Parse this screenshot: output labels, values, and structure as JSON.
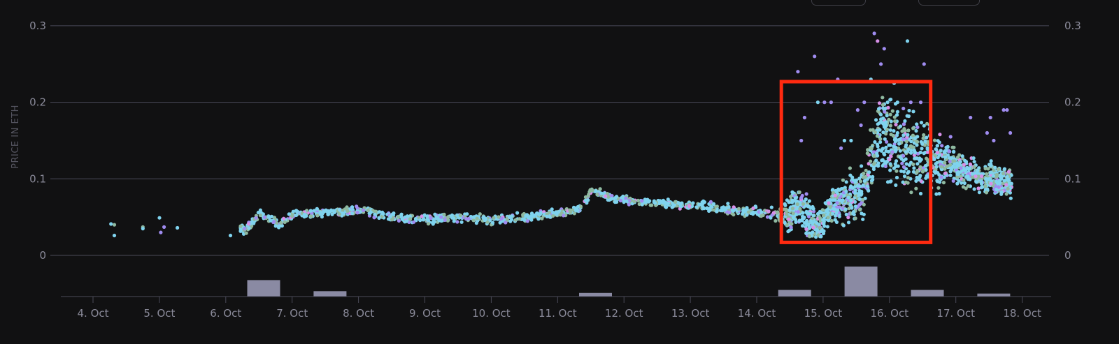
{
  "chart_data": {
    "type": "scatter",
    "ylabel": "PRICE IN ETH",
    "yticks": [
      0,
      0.1,
      0.2,
      0.3
    ],
    "ytick_labels": [
      "0",
      "0.1",
      "0.2",
      "0.3"
    ],
    "ylim": [
      0,
      0.3
    ],
    "grid": true,
    "xticks": [
      "4. Oct",
      "5. Oct",
      "6. Oct",
      "7. Oct",
      "8. Oct",
      "9. Oct",
      "10. Oct",
      "11. Oct",
      "12. Oct",
      "13. Oct",
      "14. Oct",
      "15. Oct",
      "16. Oct",
      "17. Oct",
      "18. Oct"
    ],
    "xlim": [
      3.7,
      18.4
    ],
    "price_trend": [
      [
        4.25,
        0.035
      ],
      [
        4.7,
        0.036
      ],
      [
        5.1,
        0.03
      ],
      [
        6.3,
        0.035
      ],
      [
        6.5,
        0.055
      ],
      [
        6.8,
        0.04
      ],
      [
        7.0,
        0.055
      ],
      [
        7.5,
        0.056
      ],
      [
        8.0,
        0.06
      ],
      [
        8.5,
        0.05
      ],
      [
        9.0,
        0.047
      ],
      [
        9.5,
        0.05
      ],
      [
        10.0,
        0.047
      ],
      [
        10.5,
        0.05
      ],
      [
        11.0,
        0.055
      ],
      [
        11.3,
        0.06
      ],
      [
        11.5,
        0.085
      ],
      [
        11.8,
        0.075
      ],
      [
        12.2,
        0.07
      ],
      [
        12.7,
        0.068
      ],
      [
        13.2,
        0.065
      ],
      [
        13.7,
        0.058
      ],
      [
        14.2,
        0.055
      ],
      [
        14.45,
        0.05
      ],
      [
        14.6,
        0.07
      ],
      [
        14.8,
        0.04
      ],
      [
        14.95,
        0.04
      ],
      [
        15.1,
        0.065
      ],
      [
        15.4,
        0.075
      ],
      [
        15.6,
        0.08
      ],
      [
        15.75,
        0.14
      ],
      [
        15.85,
        0.17
      ],
      [
        16.0,
        0.15
      ],
      [
        16.2,
        0.14
      ],
      [
        16.4,
        0.13
      ],
      [
        16.6,
        0.125
      ],
      [
        16.9,
        0.12
      ],
      [
        17.2,
        0.105
      ],
      [
        17.5,
        0.1
      ],
      [
        17.75,
        0.095
      ]
    ],
    "price_spread": [
      [
        4.0,
        0.006
      ],
      [
        6.3,
        0.008
      ],
      [
        11.2,
        0.008
      ],
      [
        14.3,
        0.01
      ],
      [
        14.5,
        0.04
      ],
      [
        15.0,
        0.03
      ],
      [
        15.6,
        0.05
      ],
      [
        16.0,
        0.08
      ],
      [
        16.5,
        0.06
      ],
      [
        17.0,
        0.03
      ],
      [
        17.8,
        0.025
      ]
    ],
    "outliers": [
      [
        14.6,
        0.24
      ],
      [
        14.7,
        0.18
      ],
      [
        14.85,
        0.26
      ],
      [
        15.1,
        0.2
      ],
      [
        15.2,
        0.23
      ],
      [
        15.0,
        0.2
      ],
      [
        15.3,
        0.15
      ],
      [
        15.5,
        0.19
      ],
      [
        15.75,
        0.29
      ],
      [
        15.8,
        0.28
      ],
      [
        15.9,
        0.27
      ],
      [
        15.85,
        0.25
      ],
      [
        15.7,
        0.23
      ],
      [
        16.05,
        0.225
      ],
      [
        16.1,
        0.2
      ],
      [
        16.25,
        0.28
      ],
      [
        16.5,
        0.25
      ],
      [
        16.45,
        0.2
      ],
      [
        16.3,
        0.2
      ],
      [
        17.2,
        0.18
      ],
      [
        17.5,
        0.18
      ],
      [
        17.7,
        0.19
      ],
      [
        17.8,
        0.16
      ],
      [
        17.75,
        0.19
      ],
      [
        14.65,
        0.15
      ],
      [
        15.4,
        0.15
      ],
      [
        15.6,
        0.2
      ],
      [
        14.9,
        0.2
      ],
      [
        15.25,
        0.14
      ],
      [
        16.9,
        0.155
      ],
      [
        17.45,
        0.16
      ],
      [
        17.55,
        0.15
      ],
      [
        15.55,
        0.17
      ],
      [
        15.95,
        0.2
      ]
    ],
    "volume_bars": [
      {
        "x": 6.55,
        "value": 0.55
      },
      {
        "x": 7.55,
        "value": 0.18
      },
      {
        "x": 11.55,
        "value": 0.12
      },
      {
        "x": 14.55,
        "value": 0.22
      },
      {
        "x": 15.55,
        "value": 1.0
      },
      {
        "x": 16.55,
        "value": 0.22
      },
      {
        "x": 17.55,
        "value": 0.1
      }
    ],
    "highlight_box": {
      "x_from": 14.35,
      "x_to": 16.6,
      "y_from": 0.017,
      "y_to": 0.227
    },
    "colors": {
      "background": "#111112",
      "grid": "#4a4a58",
      "tick_label": "#8a8a99",
      "dot_cyan": "#7fd3ee",
      "dot_green": "#8fb9a0",
      "dot_purple": "#a08cf0",
      "dot_pink": "#d890e8",
      "volume_bar": "#8a8aa3",
      "highlight": "#ff2a10"
    }
  }
}
